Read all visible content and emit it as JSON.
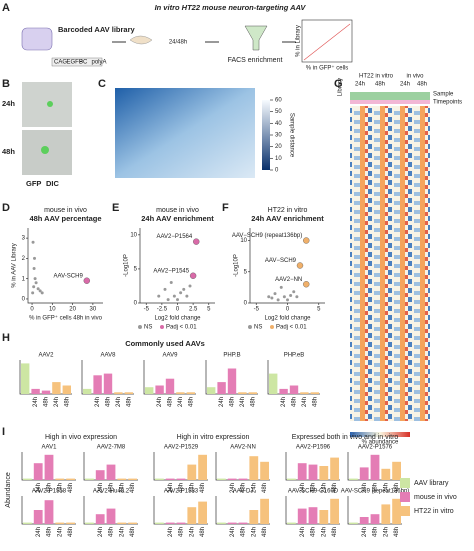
{
  "figure": {
    "A": {
      "label": "A",
      "title": "In vitro HT22 mouse neuron-targeting AAV",
      "library": "Barcoded AAV library",
      "construct": [
        "CAG",
        "EGFP",
        "BC",
        "polyA"
      ],
      "time": "24/48h",
      "facs": "FACS enrichment",
      "ylabel": "% in Library",
      "xlabel": "% in GFP⁺ cells"
    },
    "B": {
      "label": "B",
      "rows": [
        "24h",
        "48h"
      ],
      "legend": [
        "GFP",
        "DIC"
      ]
    },
    "C": {
      "label": "C",
      "colorbar_title": "Sample distance",
      "colorbar_ticks": [
        0,
        10,
        20,
        30,
        40,
        50,
        60
      ]
    },
    "D": {
      "label": "D",
      "title": "mouse in vivo",
      "subtitle": "48h AAV percentage",
      "xlabel": "% in GFP⁺ cells 48h in vivo",
      "ylabel": "% in AAV Library",
      "xlim": [
        -2,
        35
      ],
      "ylim": [
        -0.2,
        3.5
      ],
      "xticks": [
        0,
        10,
        20,
        30
      ],
      "yticks": [
        0,
        1,
        2,
        3
      ],
      "x": [
        0.5,
        1,
        1.5,
        2,
        3,
        0.3,
        0.8,
        4,
        5,
        1.2
      ],
      "y": [
        2.8,
        1.5,
        1,
        0.8,
        0.5,
        0.3,
        0.6,
        0.4,
        0.3,
        2
      ],
      "highlights": [
        {
          "label": "AAV-SCH9",
          "x": 27,
          "y": 0.9
        }
      ]
    },
    "E": {
      "label": "E",
      "title": "mouse in vivo",
      "subtitle": "24h AAV enrichment",
      "xlabel": "Log2 fold change",
      "ylabel": "-Log10P",
      "xlim": [
        -6,
        6
      ],
      "ylim": [
        0,
        11
      ],
      "xticks": [
        -5,
        -2.5,
        0,
        2.5,
        5
      ],
      "yticks": [
        0,
        5,
        10
      ],
      "x": [
        -3,
        -2,
        -1,
        -0.5,
        0,
        0.5,
        1,
        1.5,
        -1.5,
        2
      ],
      "y": [
        1,
        2,
        3,
        1,
        0.5,
        1.5,
        2,
        1,
        0.5,
        2.5
      ],
      "highlights": [
        {
          "label": "AAV2−P1564",
          "x": 3,
          "y": 9
        },
        {
          "label": "AAV2−P1545",
          "x": 2.5,
          "y": 4
        }
      ],
      "legend": [
        "NS",
        "Padj < 0.01"
      ]
    },
    "F": {
      "label": "F",
      "title": "HT22 in vitro",
      "subtitle": "24h AAV enrichment",
      "xlabel": "Log2 fold change",
      "ylabel": "-Log10P",
      "xlim": [
        -6,
        6
      ],
      "ylim": [
        0,
        12
      ],
      "xticks": [
        -5,
        0,
        5
      ],
      "yticks": [
        0,
        5,
        10
      ],
      "x": [
        -3,
        -2,
        -1,
        -0.5,
        0,
        0.5,
        1,
        -1.5,
        1.5,
        -2.5
      ],
      "y": [
        1,
        1.5,
        2.5,
        1,
        0.5,
        1.2,
        1.8,
        0.5,
        1,
        0.8
      ],
      "highlights": [
        {
          "label": "AAV−SCH9 (repeat136bp)",
          "x": 3,
          "y": 10
        },
        {
          "label": "AAV−SCH9",
          "x": 2,
          "y": 6
        },
        {
          "label": "AAV2−NN",
          "x": 3,
          "y": 3
        }
      ],
      "legend": [
        "NS",
        "Padj < 0.01"
      ]
    },
    "G": {
      "label": "G",
      "library": "Library",
      "ht22": "HT22 in vitro",
      "invivo": "in vivo",
      "times": [
        "24h",
        "48h"
      ],
      "annot": [
        "Sample",
        "Timepoints"
      ],
      "colorbar_title": "% abundance"
    },
    "H": {
      "label": "H",
      "title": "Commonly used AAVs",
      "x_labels": [
        "24h",
        "48h",
        "24h",
        "48h"
      ],
      "panels": [
        {
          "title": "AAV2",
          "values": [
            0.9,
            0.15,
            0.1,
            0.35,
            0.25
          ]
        },
        {
          "title": "AAV8",
          "values": [
            0.15,
            0.55,
            0.6,
            0.05,
            0.05
          ]
        },
        {
          "title": "AAV9",
          "values": [
            0.2,
            0.25,
            0.45,
            0.05,
            0.05
          ]
        },
        {
          "title": "PHP.B",
          "values": [
            0.2,
            0.35,
            0.75,
            0.05,
            0.05
          ]
        },
        {
          "title": "PHP.eB",
          "values": [
            0.6,
            0.15,
            0.25,
            0.05,
            0.05
          ]
        }
      ]
    },
    "I": {
      "label": "I",
      "ylabel": "Abundance",
      "x_labels": [
        "24h",
        "48h",
        "24h",
        "48h"
      ],
      "groups": [
        "High in vivo expression",
        "High in vitro expression",
        "Expressed both in vivo and in vitro"
      ],
      "panels": [
        {
          "title": "AAV1",
          "values": [
            0.05,
            0.6,
            0.9,
            0.05,
            0.05
          ]
        },
        {
          "title": "AAV2-7M8",
          "values": [
            0.05,
            0.35,
            0.55,
            0.05,
            0.05
          ]
        },
        {
          "title": "AAV2-P1558",
          "values": [
            0.05,
            0.5,
            0.85,
            0.05,
            0.05
          ]
        },
        {
          "title": "AAV2-Hu48.2",
          "values": [
            0.05,
            0.35,
            0.55,
            0.05,
            0.05
          ]
        },
        {
          "title": "AAV2-P1529",
          "values": [
            0.05,
            0.05,
            0.05,
            0.55,
            0.9
          ]
        },
        {
          "title": "AAV2-NN",
          "values": [
            0.05,
            0.05,
            0.05,
            0.85,
            0.65
          ]
        },
        {
          "title": "AAV2-P1583",
          "values": [
            0.05,
            0.05,
            0.05,
            0.6,
            0.8
          ]
        },
        {
          "title": "AAV-DJ",
          "values": [
            0.05,
            0.05,
            0.05,
            0.5,
            0.9
          ]
        },
        {
          "title": "AAV2-P1596",
          "values": [
            0.05,
            0.6,
            0.55,
            0.5,
            0.8
          ]
        },
        {
          "title": "AAV2-P1576",
          "values": [
            0.05,
            0.45,
            0.9,
            0.4,
            0.65
          ]
        },
        {
          "title": "AAV-SCH9-G160D",
          "values": [
            0.05,
            0.55,
            0.6,
            0.5,
            0.9
          ]
        },
        {
          "title": "AAV-SCH9 (repeat136bp)",
          "values": [
            0.05,
            0.25,
            0.35,
            0.7,
            0.9
          ]
        }
      ],
      "legend": [
        "AAV library",
        "mouse in vivo",
        "HT22 in vitro"
      ],
      "colors": [
        "#cde6a3",
        "#e47db5",
        "#f6c27d"
      ]
    }
  }
}
